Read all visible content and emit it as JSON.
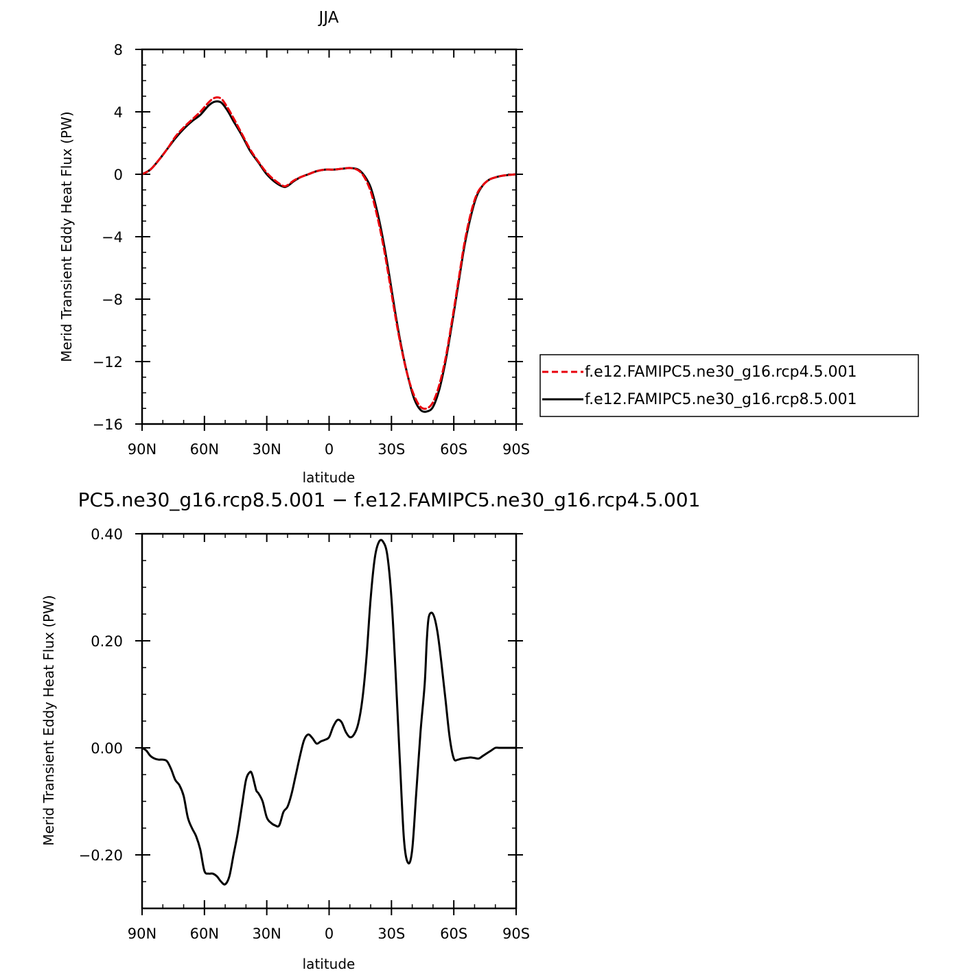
{
  "chart_data": [
    {
      "type": "line",
      "title": "JJA",
      "xlabel": "latitude",
      "ylabel": "Merid Transient Eddy Heat Flux (PW)",
      "xlim": [
        90,
        -90
      ],
      "ylim": [
        -16,
        8
      ],
      "x_ticks": [
        {
          "value": 90,
          "label": "90N"
        },
        {
          "value": 60,
          "label": "60N"
        },
        {
          "value": 30,
          "label": "30N"
        },
        {
          "value": 0,
          "label": "0"
        },
        {
          "value": -30,
          "label": "30S"
        },
        {
          "value": -60,
          "label": "60S"
        },
        {
          "value": -90,
          "label": "90S"
        }
      ],
      "y_ticks": [
        {
          "value": 8,
          "label": "8"
        },
        {
          "value": 4,
          "label": "4"
        },
        {
          "value": 0,
          "label": "0"
        },
        {
          "value": -4,
          "label": "−4"
        },
        {
          "value": -8,
          "label": "−8"
        },
        {
          "value": -12,
          "label": "−12"
        },
        {
          "value": -16,
          "label": "−16"
        }
      ],
      "legend": {
        "position": "right",
        "entries": [
          {
            "label": "f.e12.FAMIPC5.ne30_g16.rcp4.5.001",
            "color": "#e8000b",
            "dash": "dashed"
          },
          {
            "label": "f.e12.FAMIPC5.ne30_g16.rcp8.5.001",
            "color": "#000000",
            "dash": "solid"
          }
        ]
      },
      "series": [
        {
          "name": "f.e12.FAMIPC5.ne30_g16.rcp4.5.001",
          "color": "#e8000b",
          "x": [
            90,
            86,
            82,
            78,
            74,
            70,
            66,
            62,
            58,
            55,
            52,
            49,
            46,
            42,
            38,
            34,
            30,
            26,
            22,
            20,
            17,
            14,
            10,
            6,
            2,
            -2,
            -6,
            -10,
            -14,
            -17,
            -20,
            -23,
            -26,
            -29,
            -32,
            -35,
            -38,
            -41,
            -44,
            -47,
            -50,
            -53,
            -56,
            -59,
            -62,
            -65,
            -68,
            -71,
            -74,
            -77,
            -80,
            -83,
            -86,
            -90
          ],
          "y": [
            0.0,
            0.3,
            0.9,
            1.6,
            2.4,
            3.0,
            3.5,
            4.0,
            4.6,
            4.9,
            4.85,
            4.3,
            3.6,
            2.6,
            1.6,
            0.8,
            0.1,
            -0.4,
            -0.75,
            -0.7,
            -0.4,
            -0.2,
            0.0,
            0.2,
            0.3,
            0.3,
            0.35,
            0.4,
            0.25,
            -0.2,
            -1.1,
            -2.6,
            -4.5,
            -6.8,
            -9.2,
            -11.3,
            -13.0,
            -14.2,
            -14.9,
            -15.0,
            -14.6,
            -13.5,
            -11.8,
            -9.5,
            -7.0,
            -4.5,
            -2.6,
            -1.3,
            -0.7,
            -0.35,
            -0.2,
            -0.1,
            -0.05,
            0.0
          ]
        },
        {
          "name": "f.e12.FAMIPC5.ne30_g16.rcp8.5.001",
          "color": "#000000",
          "x": [
            90,
            86,
            82,
            78,
            74,
            70,
            66,
            62,
            58,
            55,
            52,
            49,
            46,
            42,
            38,
            34,
            30,
            26,
            22,
            20,
            17,
            14,
            10,
            6,
            2,
            -2,
            -6,
            -10,
            -14,
            -17,
            -20,
            -23,
            -26,
            -29,
            -32,
            -35,
            -38,
            -41,
            -44,
            -47,
            -50,
            -53,
            -56,
            -59,
            -62,
            -65,
            -68,
            -71,
            -74,
            -77,
            -80,
            -83,
            -86,
            -90
          ],
          "y": [
            0.0,
            0.3,
            0.9,
            1.6,
            2.3,
            2.9,
            3.4,
            3.8,
            4.4,
            4.65,
            4.6,
            4.1,
            3.4,
            2.5,
            1.5,
            0.75,
            0.0,
            -0.5,
            -0.8,
            -0.75,
            -0.45,
            -0.2,
            0.0,
            0.2,
            0.3,
            0.3,
            0.35,
            0.4,
            0.3,
            -0.1,
            -0.85,
            -2.3,
            -4.2,
            -6.5,
            -9.0,
            -11.2,
            -13.0,
            -14.4,
            -15.1,
            -15.2,
            -14.9,
            -13.8,
            -12.0,
            -9.7,
            -7.2,
            -4.7,
            -2.8,
            -1.4,
            -0.7,
            -0.35,
            -0.2,
            -0.1,
            -0.05,
            0.0
          ]
        }
      ]
    },
    {
      "type": "line",
      "title": "PC5.ne30_g16.rcp8.5.001 − f.e12.FAMIPC5.ne30_g16.rcp4.5.001",
      "xlabel": "latitude",
      "ylabel": "Merid Transient Eddy Heat Flux (PW)",
      "xlim": [
        90,
        -90
      ],
      "ylim": [
        -0.3,
        0.4
      ],
      "x_ticks": [
        {
          "value": 90,
          "label": "90N"
        },
        {
          "value": 60,
          "label": "60N"
        },
        {
          "value": 30,
          "label": "30N"
        },
        {
          "value": 0,
          "label": "0"
        },
        {
          "value": -30,
          "label": "30S"
        },
        {
          "value": -60,
          "label": "60S"
        },
        {
          "value": -90,
          "label": "90S"
        }
      ],
      "y_ticks": [
        {
          "value": 0.4,
          "label": "0.40"
        },
        {
          "value": 0.2,
          "label": "0.20"
        },
        {
          "value": 0.0,
          "label": "0.00"
        },
        {
          "value": -0.2,
          "label": "−0.20"
        }
      ],
      "series": [
        {
          "color": "#000000",
          "x": [
            90,
            88,
            86,
            84,
            82,
            80,
            78,
            76,
            74,
            72,
            70,
            68,
            66,
            64,
            62,
            60,
            58,
            56,
            54,
            52,
            50,
            48,
            46,
            44,
            42,
            40,
            38,
            37,
            36,
            35,
            34,
            32,
            30,
            28,
            26,
            24,
            22,
            20,
            18,
            16,
            14,
            12,
            10,
            8,
            6,
            4,
            2,
            0,
            -2,
            -4,
            -6,
            -8,
            -10,
            -12,
            -14,
            -16,
            -18,
            -20,
            -22,
            -24,
            -26,
            -28,
            -30,
            -32,
            -34,
            -36,
            -38,
            -40,
            -42,
            -44,
            -46,
            -47,
            -48,
            -50,
            -52,
            -54,
            -56,
            -58,
            -60,
            -62,
            -63,
            -64,
            -66,
            -68,
            -70,
            -72,
            -74,
            -76,
            -78,
            -80,
            -82,
            -84,
            -86,
            -88,
            -90
          ],
          "y": [
            0.0,
            -0.005,
            -0.015,
            -0.02,
            -0.022,
            -0.022,
            -0.025,
            -0.04,
            -0.06,
            -0.07,
            -0.09,
            -0.13,
            -0.15,
            -0.165,
            -0.19,
            -0.23,
            -0.235,
            -0.235,
            -0.24,
            -0.25,
            -0.255,
            -0.24,
            -0.2,
            -0.16,
            -0.11,
            -0.06,
            -0.045,
            -0.05,
            -0.065,
            -0.08,
            -0.085,
            -0.1,
            -0.13,
            -0.14,
            -0.145,
            -0.145,
            -0.12,
            -0.11,
            -0.085,
            -0.05,
            -0.015,
            0.015,
            0.025,
            0.018,
            0.008,
            0.012,
            0.015,
            0.02,
            0.04,
            0.052,
            0.048,
            0.03,
            0.02,
            0.025,
            0.045,
            0.09,
            0.17,
            0.28,
            0.355,
            0.385,
            0.385,
            0.36,
            0.28,
            0.14,
            -0.02,
            -0.17,
            -0.215,
            -0.19,
            -0.08,
            0.03,
            0.12,
            0.2,
            0.245,
            0.25,
            0.22,
            0.16,
            0.09,
            0.02,
            -0.02,
            -0.022,
            -0.021,
            -0.02,
            -0.019,
            -0.018,
            -0.019,
            -0.02,
            -0.015,
            -0.01,
            -0.005,
            0.0,
            0.0,
            0.0,
            0.0,
            0.0,
            0.0
          ]
        }
      ]
    }
  ]
}
